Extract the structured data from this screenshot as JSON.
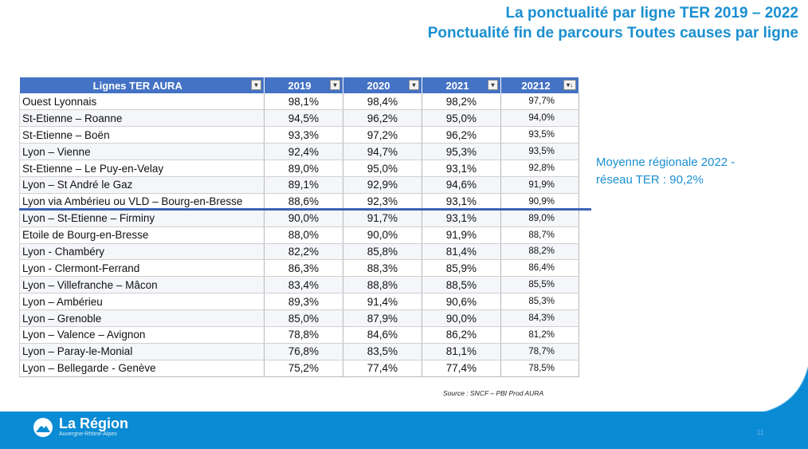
{
  "title": {
    "line1": "La ponctualité par ligne TER 2019 – 2022",
    "line2": "Ponctualité fin de parcours Toutes causes par ligne"
  },
  "table": {
    "headers": [
      "Lignes TER AURA",
      "2019",
      "2020",
      "2021",
      "20212"
    ],
    "filter_icons": [
      "dropdown-arrow",
      "dropdown-arrow",
      "dropdown-arrow",
      "dropdown-arrow",
      "sort-desc-arrow"
    ],
    "rows": [
      [
        "Ouest Lyonnais",
        "98,1%",
        "98,4%",
        "98,2%",
        "97,7%"
      ],
      [
        "St-Etienne – Roanne",
        "94,5%",
        "96,2%",
        "95,0%",
        "94,0%"
      ],
      [
        "St-Etienne – Boën",
        "93,3%",
        "97,2%",
        "96,2%",
        "93,5%"
      ],
      [
        "Lyon – Vienne",
        "92,4%",
        "94,7%",
        "95,3%",
        "93,5%"
      ],
      [
        "St-Etienne – Le Puy-en-Velay",
        "89,0%",
        "95,0%",
        "93,1%",
        "92,8%"
      ],
      [
        "Lyon – St André le Gaz",
        "89,1%",
        "92,9%",
        "94,6%",
        "91,9%"
      ],
      [
        "Lyon via Ambérieu ou VLD – Bourg-en-Bresse",
        "88,6%",
        "92,3%",
        "93,1%",
        "90,9%"
      ],
      [
        "Lyon – St-Etienne – Firminy",
        "90,0%",
        "91,7%",
        "93,1%",
        "89,0%"
      ],
      [
        "Etoile de Bourg-en-Bresse",
        "88,0%",
        "90,0%",
        "91,9%",
        "88,7%"
      ],
      [
        "Lyon - Chambéry",
        "82,2%",
        "85,8%",
        "81,4%",
        "88,2%"
      ],
      [
        "Lyon - Clermont-Ferrand",
        "86,3%",
        "88,3%",
        "85,9%",
        "86,4%"
      ],
      [
        "Lyon – Villefranche – Mâcon",
        "83,4%",
        "88,8%",
        "88,5%",
        "85,5%"
      ],
      [
        "Lyon – Ambérieu",
        "89,3%",
        "91,4%",
        "90,6%",
        "85,3%"
      ],
      [
        "Lyon – Grenoble",
        "85,0%",
        "87,9%",
        "90,0%",
        "84,3%"
      ],
      [
        "Lyon – Valence – Avignon",
        "78,8%",
        "84,6%",
        "86,2%",
        "81,2%"
      ],
      [
        "Lyon – Paray-le-Monial",
        "76,8%",
        "83,5%",
        "81,1%",
        "78,7%"
      ],
      [
        "Lyon – Bellegarde - Genève",
        "75,2%",
        "77,4%",
        "77,4%",
        "78,5%"
      ]
    ]
  },
  "average_note": {
    "line1": "Moyenne régionale 2022 -",
    "line2": "réseau TER : 90,2%"
  },
  "source": "Source : SNCF – PBI Prod AURA",
  "footer": {
    "logo_title": "La Région",
    "logo_subtitle": "Auvergne-Rhône-Alpes",
    "page_number": "11"
  },
  "colors": {
    "accent": "#1a8fd1",
    "table_header": "#4472c4",
    "average_line": "#3c63b5",
    "footer": "#0a8bd4"
  }
}
